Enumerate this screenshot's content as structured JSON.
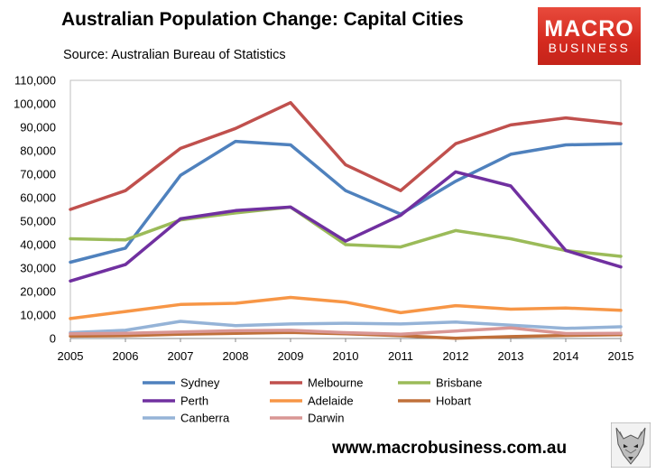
{
  "header": {
    "title": "Australian Population Change: Capital Cities",
    "subtitle": "Source: Australian Bureau of Statistics"
  },
  "logo": {
    "line1": "MACRO",
    "line2": "BUSINESS",
    "color": "#d93025"
  },
  "footer": {
    "url": "www.macrobusiness.com.au",
    "mascot_icon": "fox-icon"
  },
  "chart_data": {
    "type": "line",
    "x": [
      "2005",
      "2006",
      "2007",
      "2008",
      "2009",
      "2010",
      "2011",
      "2012",
      "2013",
      "2014",
      "2015"
    ],
    "ylim": [
      0,
      110000
    ],
    "yticks": [
      "0",
      "10,000",
      "20,000",
      "30,000",
      "40,000",
      "50,000",
      "60,000",
      "70,000",
      "80,000",
      "90,000",
      "100,000",
      "110,000"
    ],
    "grid": false,
    "legend_position": "bottom",
    "series": [
      {
        "name": "Sydney",
        "color": "#4f81bd",
        "values": [
          32500,
          38500,
          69500,
          84000,
          82500,
          63000,
          53000,
          67000,
          78500,
          82500,
          83000
        ]
      },
      {
        "name": "Melbourne",
        "color": "#c0504d",
        "values": [
          55000,
          63000,
          81000,
          89500,
          100500,
          74000,
          63000,
          83000,
          91000,
          94000,
          91500
        ]
      },
      {
        "name": "Brisbane",
        "color": "#9bbb59",
        "values": [
          42500,
          42000,
          50500,
          53500,
          56000,
          40000,
          39000,
          46000,
          42500,
          37500,
          35000
        ]
      },
      {
        "name": "Perth",
        "color": "#7030a0",
        "values": [
          24500,
          31500,
          51000,
          54500,
          56000,
          41500,
          52500,
          71000,
          65000,
          37500,
          30500
        ]
      },
      {
        "name": "Adelaide",
        "color": "#f79646",
        "values": [
          8500,
          11500,
          14500,
          15000,
          17500,
          15500,
          11000,
          14000,
          12500,
          13000,
          12000
        ]
      },
      {
        "name": "Hobart",
        "color": "#c0703a",
        "values": [
          1000,
          1200,
          1800,
          2200,
          2600,
          2000,
          1200,
          100,
          800,
          1300,
          1600
        ]
      },
      {
        "name": "Canberra",
        "color": "#95b3d7",
        "values": [
          2500,
          3500,
          7300,
          5500,
          6200,
          6500,
          6200,
          7000,
          5700,
          4300,
          5000
        ]
      },
      {
        "name": "Darwin",
        "color": "#d99694",
        "values": [
          2000,
          2200,
          2800,
          3300,
          3500,
          2500,
          1800,
          3200,
          4500,
          2100,
          2200
        ]
      }
    ]
  }
}
